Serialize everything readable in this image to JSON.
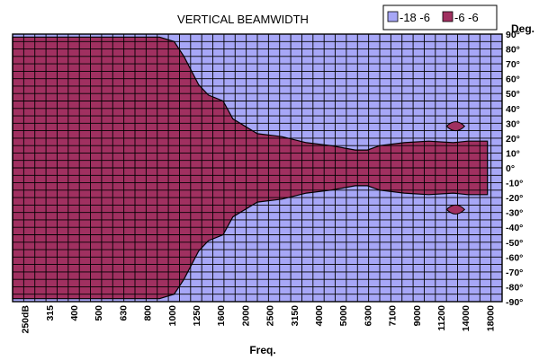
{
  "chart_data": {
    "type": "heatmap",
    "title": "VERTICAL BEAMWIDTH",
    "xlabel": "Freq.",
    "ylabel": "Deg.",
    "x_categories": [
      "250dB",
      "315",
      "400",
      "500",
      "630",
      "800",
      "1000",
      "1250",
      "1600",
      "2000",
      "2500",
      "3150",
      "4000",
      "5000",
      "6300",
      "7100",
      "9000",
      "11200",
      "14000",
      "18000"
    ],
    "y_ticks": [
      "90°",
      "80°",
      "70°",
      "60°",
      "50°",
      "40°",
      "30°",
      "20°",
      "10°",
      "0°",
      "-10°",
      "-20°",
      "-30°",
      "-40°",
      "-50°",
      "-60°",
      "-70°",
      "-80°",
      "-90°"
    ],
    "ylim": [
      -90,
      90
    ],
    "legend": {
      "placement": "top-right",
      "entries": [
        {
          "label": "-18 -6",
          "color": "#a7a7f7"
        },
        {
          "label": "-6 -6",
          "color": "#a03060"
        }
      ]
    },
    "series": [
      {
        "name": "-6 -6",
        "boundary_half_angle_deg": {
          "x": [
            0,
            6,
            6.6,
            7.0,
            7.6,
            8.0,
            8.6,
            9.0,
            10,
            11,
            12,
            13,
            14,
            14.5,
            15,
            16,
            17,
            18,
            18.6,
            19.4
          ],
          "upper": [
            88,
            88,
            85,
            75,
            56,
            49,
            45,
            33,
            23,
            21,
            17,
            15,
            12,
            12,
            15,
            17,
            18,
            17,
            18,
            18
          ],
          "lower": [
            -88,
            -88,
            -85,
            -75,
            -56,
            -49,
            -45,
            -33,
            -23,
            -21,
            -17,
            -15,
            -12,
            -12,
            -15,
            -17,
            -18,
            -17,
            -18,
            -18
          ]
        }
      },
      {
        "name": "-18 -6",
        "fills": "remainder"
      }
    ],
    "grid": true
  }
}
